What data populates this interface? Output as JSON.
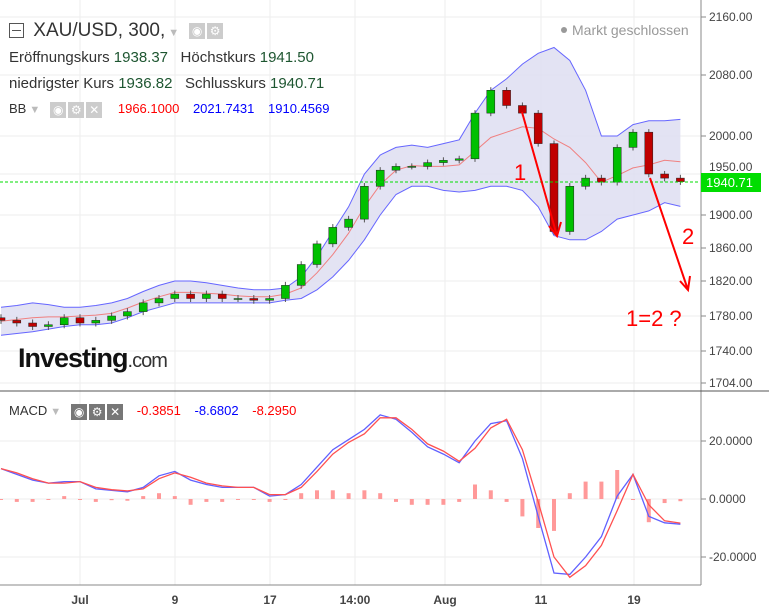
{
  "header": {
    "symbol": "XAU/USD, 300,",
    "market_status": "Markt geschlossen",
    "open_label": "Eröffnungskurs",
    "open": "1938.37",
    "high_label": "Höchstkurs",
    "high": "1941.50",
    "low_label": "niedrigster Kurs",
    "low": "1936.82",
    "close_label": "Schlusskurs",
    "close": "1940.71"
  },
  "bb": {
    "label": "BB",
    "middle": "1966.1000",
    "upper": "2021.7431",
    "lower": "1910.4569"
  },
  "macd_legend": {
    "label": "MACD",
    "histogram": "-0.3851",
    "macd": "-8.6802",
    "signal": "-8.2950"
  },
  "logo": {
    "brand": "Investing",
    "suffix": ".com"
  },
  "annotations": {
    "a1": "1",
    "a2": "2",
    "a3": "1=2 ?"
  },
  "colors": {
    "up": "#00c000",
    "down": "#c00000",
    "band_fill": "#dcdcf0",
    "band_line": "#6666ff",
    "middle": "#f08080",
    "macd": "#6060ff",
    "signal": "#ff5050",
    "last_price": "#00dd00",
    "annotation": "#ff0000"
  },
  "chart_data": [
    {
      "type": "candlestick",
      "title": "XAU/USD, 300",
      "ylim": [
        1704,
        2160
      ],
      "yticks": [
        "2160.00",
        "2080.00",
        "2000.00",
        "1950.00",
        "1900.00",
        "1860.00",
        "1820.00",
        "1780.00",
        "1740.00",
        "1704.00"
      ],
      "xticks": [
        "Jul",
        "9",
        "17",
        "14:00",
        "Aug",
        "11",
        "19"
      ],
      "last_price": "1940.71",
      "close": [
        1775,
        1772,
        1768,
        1770,
        1778,
        1772,
        1775,
        1780,
        1785,
        1795,
        1800,
        1805,
        1800,
        1805,
        1800,
        1800,
        1798,
        1800,
        1815,
        1840,
        1865,
        1885,
        1895,
        1935,
        1955,
        1960,
        1960,
        1965,
        1968,
        1970,
        2030,
        2060,
        2040,
        2030,
        1990,
        1880,
        1935,
        1945,
        1940,
        1985,
        2005,
        1950,
        1945,
        1940.71
      ],
      "bb_upper": [
        1790,
        1792,
        1795,
        1793,
        1790,
        1790,
        1792,
        1795,
        1800,
        1808,
        1815,
        1820,
        1820,
        1818,
        1815,
        1812,
        1810,
        1810,
        1812,
        1825,
        1850,
        1880,
        1910,
        1950,
        1975,
        1985,
        1988,
        1985,
        1990,
        1995,
        2030,
        2060,
        2075,
        2095,
        2110,
        2118,
        2100,
        2060,
        2000,
        2000,
        2015,
        2020,
        2020,
        2021.74
      ],
      "bb_middle": [
        1774,
        1776,
        1778,
        1779,
        1779,
        1780,
        1781,
        1783,
        1789,
        1796,
        1802,
        1807,
        1807,
        1806,
        1805,
        1803,
        1802,
        1802,
        1805,
        1812,
        1830,
        1852,
        1878,
        1910,
        1937,
        1955,
        1961,
        1960,
        1960,
        1962,
        1980,
        1998,
        2005,
        2012,
        2010,
        1996,
        1985,
        1965,
        1940,
        1948,
        1958,
        1962,
        1968,
        1966.1
      ],
      "bb_lower": [
        1758,
        1760,
        1762,
        1765,
        1768,
        1770,
        1770,
        1772,
        1778,
        1785,
        1790,
        1795,
        1795,
        1795,
        1795,
        1795,
        1795,
        1795,
        1798,
        1800,
        1810,
        1825,
        1845,
        1870,
        1900,
        1925,
        1935,
        1935,
        1930,
        1928,
        1930,
        1935,
        1935,
        1930,
        1910,
        1875,
        1870,
        1870,
        1880,
        1895,
        1900,
        1905,
        1915,
        1910.46
      ]
    },
    {
      "type": "line",
      "title": "MACD",
      "ylim": [
        -28,
        32
      ],
      "yticks": [
        "20.0000",
        "0.0000",
        "-20.0000"
      ],
      "macd": [
        10.5,
        8.5,
        6.5,
        5.5,
        6,
        6,
        3.5,
        3,
        2.5,
        4,
        8,
        9.5,
        6.5,
        5,
        4,
        4,
        4,
        1,
        1.5,
        5,
        11,
        17,
        20.5,
        24,
        29,
        27.5,
        23,
        18,
        15.5,
        12.5,
        20,
        26,
        27,
        14,
        -6,
        -25.5,
        -26,
        -20,
        -13,
        1,
        8.5,
        -6,
        -8.2,
        -8.68
      ],
      "signal": [
        10.5,
        9,
        7,
        5.5,
        5.5,
        6,
        4,
        3.2,
        2.8,
        3.5,
        7,
        9,
        7.5,
        5.5,
        4.5,
        4,
        4,
        1.5,
        1.5,
        4,
        9.5,
        15.5,
        19.5,
        22.5,
        28,
        28,
        24,
        19,
        16.5,
        13,
        17.5,
        24.5,
        27.5,
        17,
        -1,
        -20,
        -27,
        -23,
        -16,
        -4,
        8.5,
        -2,
        -7.5,
        -8.3
      ]
    }
  ]
}
